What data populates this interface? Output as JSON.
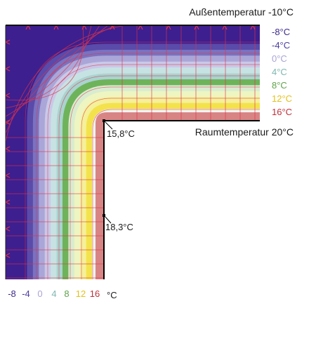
{
  "labels": {
    "outside_temp": "Außentemperatur -10°C",
    "room_temp": "Raumtemperatur 20°C",
    "corner_surface_temp": "15,8°C",
    "wall_surface_temp": "18,3°C",
    "unit": "°C"
  },
  "isotherm_legend": [
    {
      "label": "-8°C",
      "color": "#3d2a8c"
    },
    {
      "label": "-4°C",
      "color": "#4b3da0"
    },
    {
      "label": "0°C",
      "color": "#a9a4d4"
    },
    {
      "label": "4°C",
      "color": "#7fb7b0"
    },
    {
      "label": "8°C",
      "color": "#5ea24a"
    },
    {
      "label": "12°C",
      "color": "#e3c21a"
    },
    {
      "label": "16°C",
      "color": "#c0303a"
    }
  ],
  "bottom_scale": [
    {
      "label": "-8",
      "color": "#3d2a8c"
    },
    {
      "label": "-4",
      "color": "#4b3da0"
    },
    {
      "label": "0",
      "color": "#a9a4d4"
    },
    {
      "label": "4",
      "color": "#7fb7b0"
    },
    {
      "label": "8",
      "color": "#5ea24a"
    },
    {
      "label": "12",
      "color": "#e3c21a"
    },
    {
      "label": "16",
      "color": "#c0303a"
    }
  ],
  "colors": {
    "outside": "#3d1f8f",
    "bands": [
      "#3d1f8f",
      "#5a4aaa",
      "#7a72c0",
      "#aaa6d8",
      "#c9c8e8",
      "#c7e2e2",
      "#a9d3cf",
      "#6eb35a",
      "#d8ecd0",
      "#eef5c0",
      "#f5f09a",
      "#f3e24c",
      "#f2f4f0",
      "#d68080"
    ],
    "grid": "#e0334a",
    "wall": "#000000"
  }
}
